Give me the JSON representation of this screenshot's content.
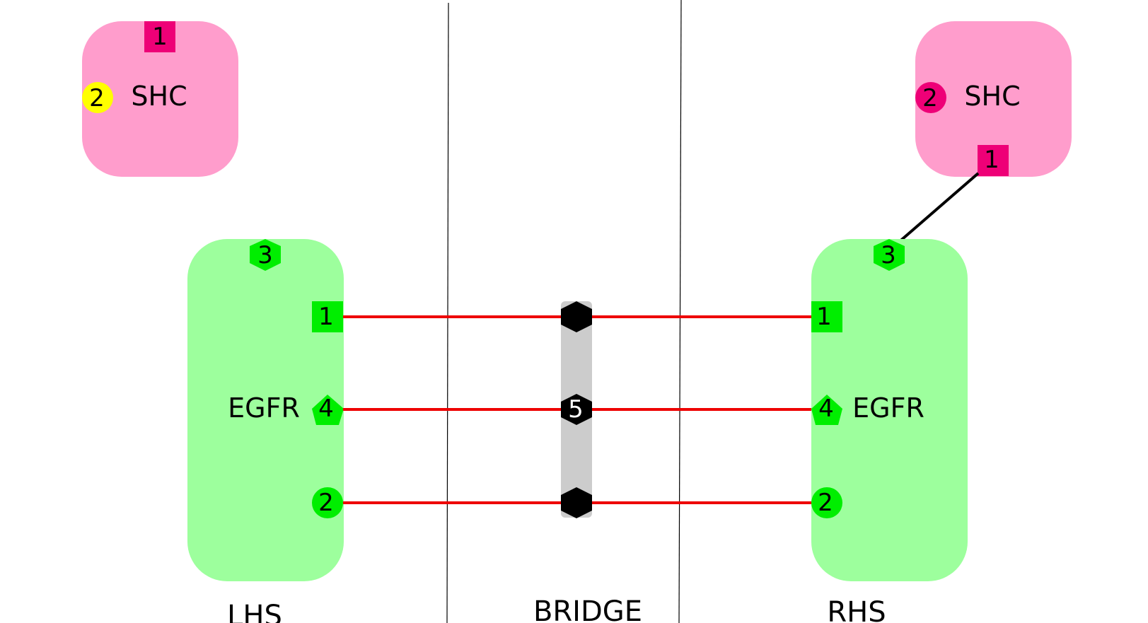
{
  "sections": {
    "lhs": "LHS",
    "bridge": "BRIDGE",
    "rhs": "RHS"
  },
  "lhs": {
    "shc": {
      "label": "SHC",
      "color": "#ff9dcc",
      "sites": [
        {
          "label": "1",
          "shape": "square",
          "color": "#ee0077"
        },
        {
          "label": "2",
          "shape": "circle",
          "color": "#ffff00"
        }
      ]
    },
    "egfr": {
      "label": "EGFR",
      "color": "#9dff9d",
      "sites": [
        {
          "label": "3",
          "shape": "hexagon",
          "color": "#00ee00"
        },
        {
          "label": "1",
          "shape": "square",
          "color": "#00ee00"
        },
        {
          "label": "4",
          "shape": "pentagon",
          "color": "#00ee00"
        },
        {
          "label": "2",
          "shape": "circle",
          "color": "#00ee00"
        }
      ]
    }
  },
  "rhs": {
    "shc": {
      "label": "SHC",
      "color": "#ff9dcc",
      "sites": [
        {
          "label": "2",
          "shape": "circle",
          "color": "#ee0077"
        },
        {
          "label": "1",
          "shape": "square",
          "color": "#ee0077"
        }
      ]
    },
    "egfr": {
      "label": "EGFR",
      "color": "#9dff9d",
      "sites": [
        {
          "label": "3",
          "shape": "hexagon",
          "color": "#00ee00"
        },
        {
          "label": "1",
          "shape": "square",
          "color": "#00ee00"
        },
        {
          "label": "4",
          "shape": "pentagon",
          "color": "#00ee00"
        },
        {
          "label": "2",
          "shape": "circle",
          "color": "#00ee00"
        }
      ]
    }
  },
  "bridge": {
    "node_label": "5",
    "bar_color": "#cccccc",
    "node_color": "#000000"
  },
  "colors": {
    "bond_bridge": "#ee0000",
    "bond_rhs": "#000000",
    "divider": "#000000"
  }
}
